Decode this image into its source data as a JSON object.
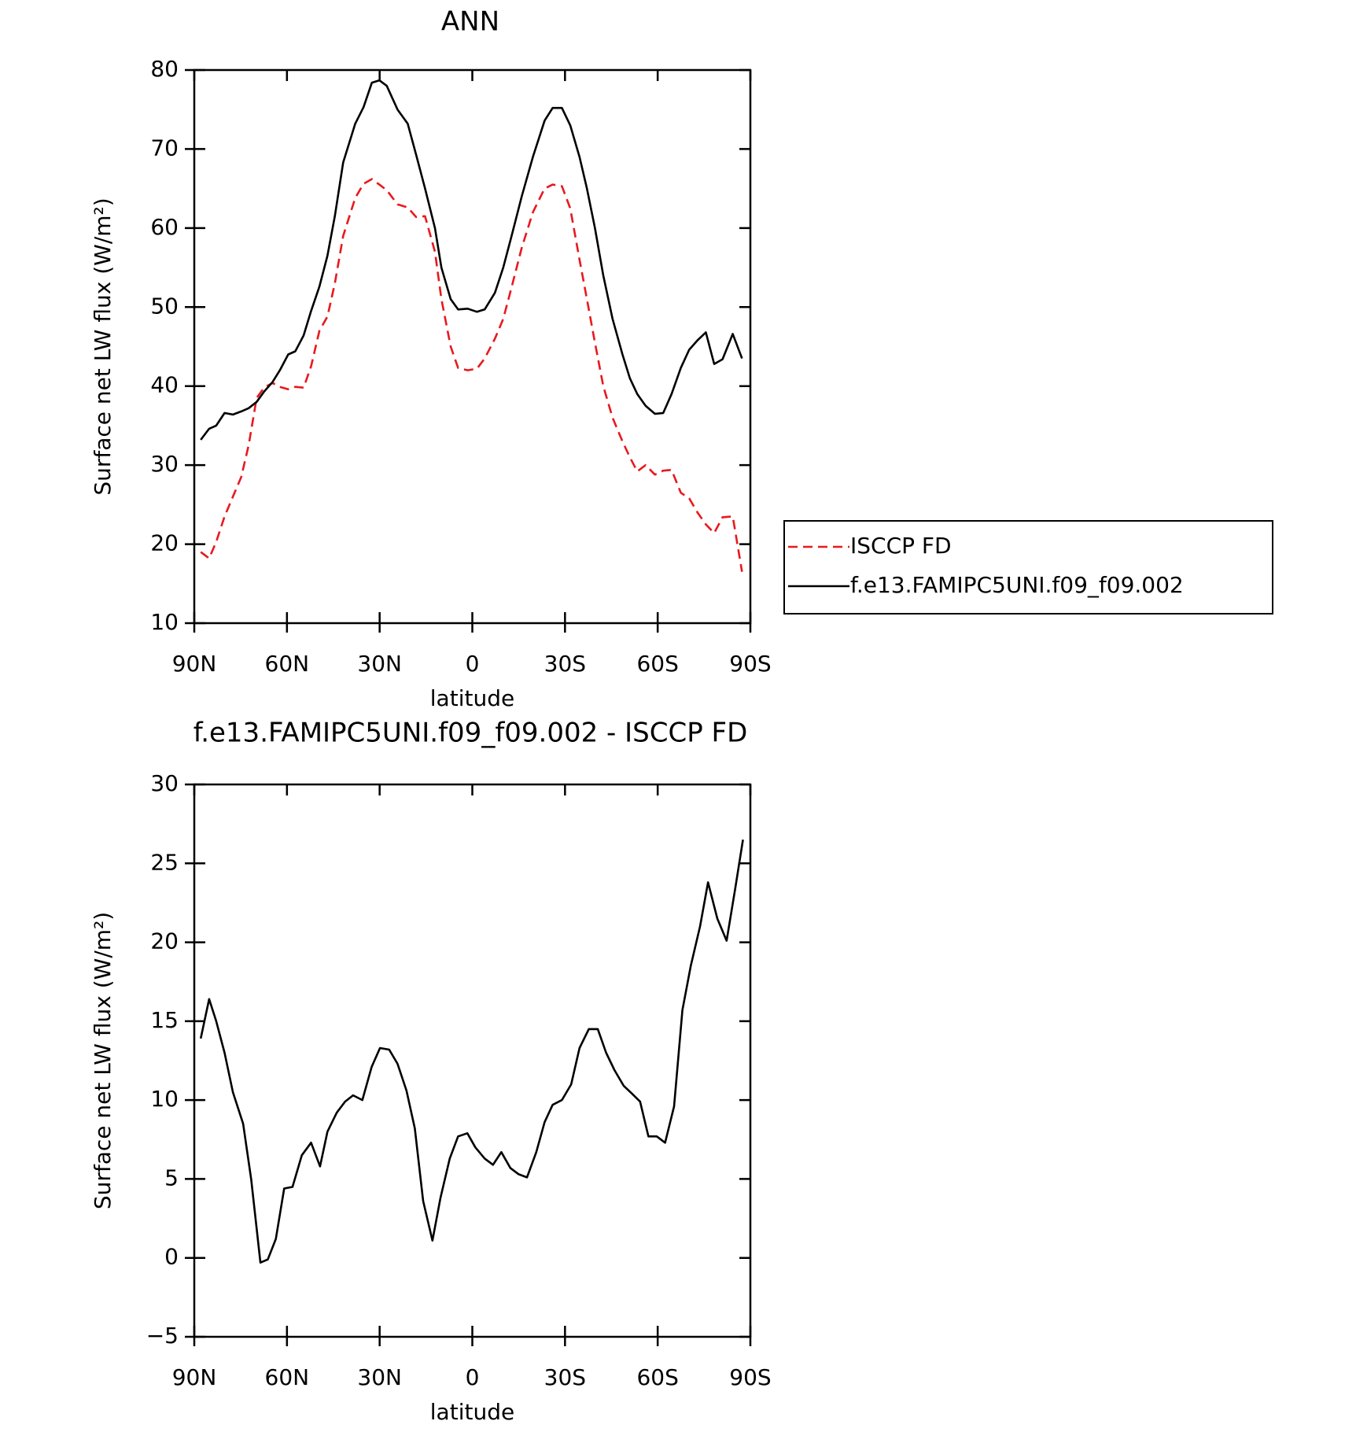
{
  "chart_data": [
    {
      "type": "line",
      "title": "ANN",
      "xlabel": "latitude",
      "ylabel": "Surface net LW flux (W/m²)",
      "x": [
        87.9,
        85.2,
        82.9,
        80.2,
        77.5,
        74.8,
        72.4,
        69.8,
        67.4,
        64.7,
        62.3,
        59.6,
        57.3,
        54.6,
        52.2,
        49.5,
        46.9,
        44.5,
        41.8,
        37.9,
        35.2,
        32.5,
        30.1,
        27.7,
        24.2,
        20.9,
        18.2,
        15.3,
        12.1,
        10,
        7,
        4.6,
        1.5,
        -1.5,
        -4,
        -7.3,
        -10,
        -12.7,
        -16,
        -19.6,
        -23.4,
        -26,
        -29,
        -31.7,
        -34.7,
        -37.1,
        -39.7,
        -42.4,
        -45.4,
        -48.6,
        -51,
        -53.4,
        -56.1,
        -59.1,
        -61.8,
        -64.5,
        -67.5,
        -70.2,
        -72.9,
        -75.6,
        -78.3,
        -81,
        -84.3,
        -87.3
      ],
      "series": [
        {
          "name": "ISCCP FD",
          "color": "#e8191e",
          "dash": true,
          "values": [
            19,
            18.2,
            20.3,
            23.5,
            26,
            28.5,
            32.5,
            38.5,
            39.8,
            40.4,
            39.9,
            39.6,
            39.9,
            39.8,
            42.5,
            47,
            48.8,
            53,
            59,
            63.8,
            65.6,
            66.2,
            65.5,
            64.8,
            63,
            62.6,
            61.4,
            61.5,
            57,
            51,
            45,
            42.3,
            42,
            42.2,
            43.5,
            46,
            48.5,
            52.5,
            57.5,
            62,
            65,
            65.5,
            65.3,
            62.5,
            56,
            51,
            45.5,
            40,
            36,
            33,
            31,
            29.2,
            30,
            28.8,
            29.3,
            29.4,
            26.5,
            25.8,
            24,
            22.5,
            21.4,
            23.4,
            23.5,
            16.5
          ]
        },
        {
          "name": "f.e13.FAMIPC5UNI.f09_f09.002",
          "color": "#000000",
          "dash": false,
          "values": [
            33.2,
            34.6,
            35,
            36.6,
            36.4,
            36.8,
            37.2,
            38,
            39.3,
            40.5,
            42,
            44,
            44.4,
            46.4,
            49.5,
            52.6,
            56.5,
            61.5,
            68.3,
            73.2,
            75.3,
            78.4,
            78.7,
            78,
            75,
            73.2,
            69.3,
            65,
            60,
            55,
            51,
            49.7,
            49.8,
            49.4,
            49.7,
            51.8,
            55,
            59,
            64,
            69,
            73.6,
            75.2,
            75.2,
            73,
            69,
            65,
            60,
            54,
            48.5,
            44,
            41,
            39,
            37.5,
            36.5,
            36.6,
            39,
            42.3,
            44.6,
            45.8,
            46.8,
            42.8,
            43.4,
            46.6,
            43.5
          ]
        }
      ],
      "xlim": [
        90,
        -90
      ],
      "xticks": [
        {
          "value": 90,
          "label": "90N"
        },
        {
          "value": 60,
          "label": "60N"
        },
        {
          "value": 30,
          "label": "30N"
        },
        0,
        {
          "value": -30,
          "label": "30S"
        },
        {
          "value": -60,
          "label": "60S"
        },
        {
          "value": -90,
          "label": "90S"
        }
      ],
      "ylim": [
        10,
        80
      ],
      "yticks": [
        10,
        20,
        30,
        40,
        50,
        60,
        70,
        80
      ],
      "legend": "right"
    },
    {
      "type": "line",
      "title": "f.e13.FAMIPC5UNI.f09_f09.002 - ISCCP FD",
      "xlabel": "latitude",
      "ylabel": "Surface net LW flux (W/m²)",
      "x": [
        87.9,
        85.2,
        82.9,
        80.2,
        77.5,
        74.2,
        71.6,
        68.6,
        66.2,
        63.6,
        60.9,
        58.2,
        55.2,
        52.2,
        49.3,
        46.9,
        43.9,
        41.2,
        38.6,
        35.6,
        32.6,
        29.9,
        26.9,
        24.2,
        21.3,
        18.6,
        15.9,
        12.9,
        10.3,
        7.3,
        4.6,
        1.6,
        -1,
        -4,
        -6.7,
        -9.4,
        -12.3,
        -15,
        -17.7,
        -20.7,
        -23.4,
        -26,
        -29,
        -32,
        -34.7,
        -37.7,
        -40.6,
        -43.3,
        -46,
        -49,
        -51.7,
        -54.3,
        -57,
        -59.7,
        -62.4,
        -65.3,
        -68,
        -70.7,
        -73.7,
        -76.3,
        -79.3,
        -82.3,
        -85,
        -87.6
      ],
      "values": [
        13.9,
        16.4,
        15,
        13,
        10.5,
        8.5,
        5,
        -0.3,
        -0.1,
        1.2,
        4.4,
        4.5,
        6.5,
        7.3,
        5.8,
        8,
        9.2,
        9.9,
        10.3,
        10,
        12.1,
        13.3,
        13.2,
        12.3,
        10.6,
        8.2,
        3.6,
        1.1,
        3.8,
        6.3,
        7.7,
        7.9,
        7,
        6.3,
        5.9,
        6.7,
        5.7,
        5.3,
        5.1,
        6.7,
        8.6,
        9.7,
        10,
        11,
        13.3,
        14.5,
        14.5,
        13,
        11.9,
        10.9,
        10.4,
        9.9,
        7.7,
        7.7,
        7.3,
        9.6,
        15.7,
        18.5,
        21,
        23.8,
        21.5,
        20.1,
        23.3,
        26.5
      ],
      "color": "#000000",
      "xlim": [
        90,
        -90
      ],
      "xticks": [
        {
          "value": 90,
          "label": "90N"
        },
        {
          "value": 60,
          "label": "60N"
        },
        {
          "value": 30,
          "label": "30N"
        },
        0,
        {
          "value": -30,
          "label": "30S"
        },
        {
          "value": -60,
          "label": "60S"
        },
        {
          "value": -90,
          "label": "90S"
        }
      ],
      "ylim": [
        -5,
        30
      ],
      "yticks": [
        {
          "value": -5,
          "label": "−5"
        },
        0,
        5,
        10,
        15,
        20,
        25,
        30
      ]
    }
  ]
}
